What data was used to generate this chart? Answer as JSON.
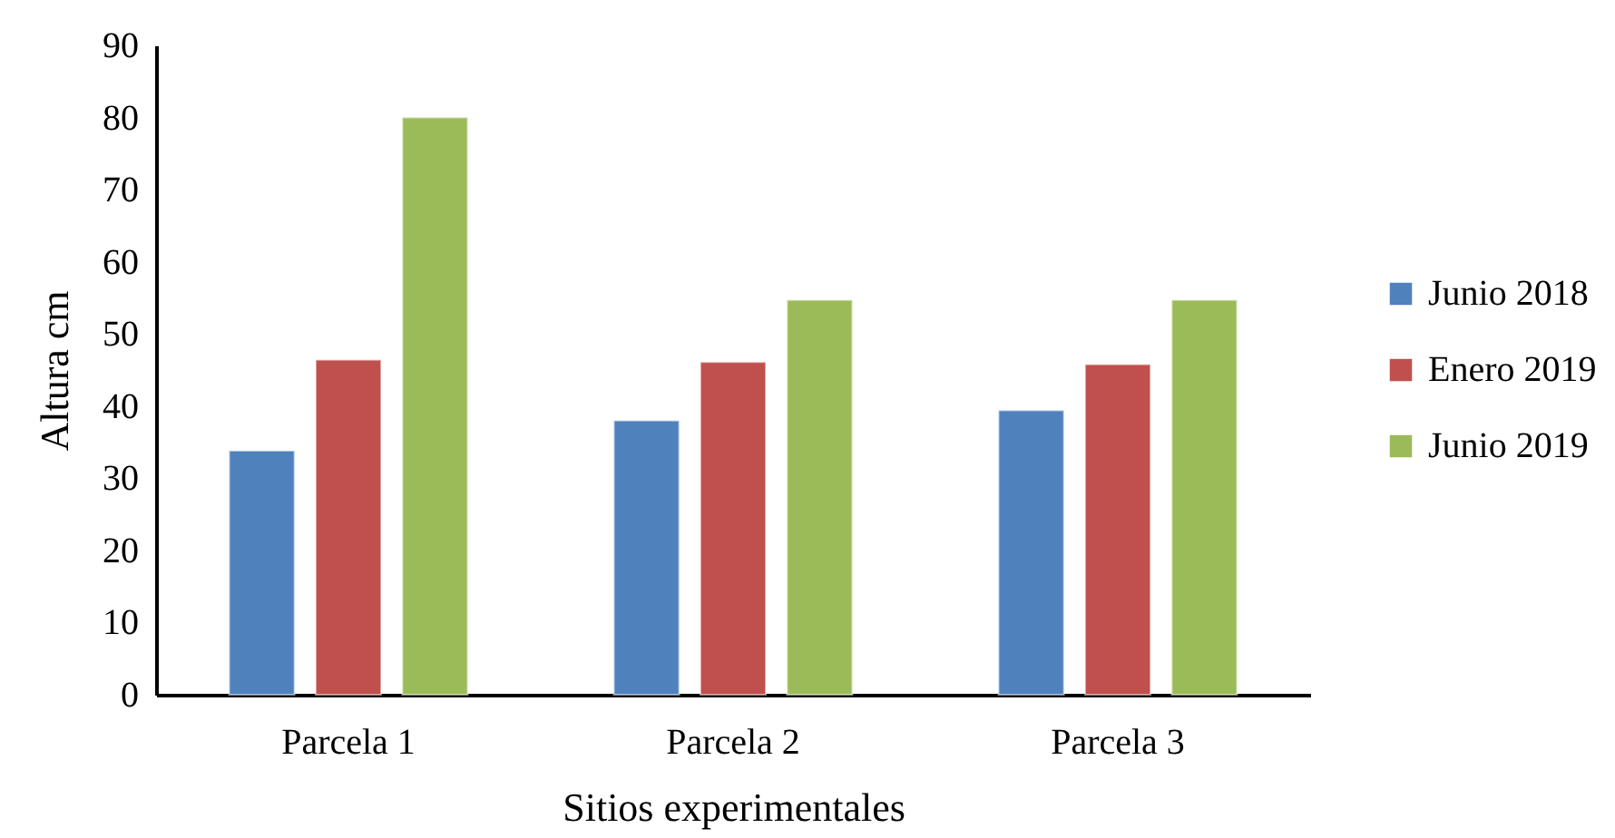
{
  "chart_data": {
    "type": "bar",
    "xlabel": "Sitios experimentales",
    "ylabel": "Altura cm",
    "categories": [
      "Parcela 1",
      "Parcela 2",
      "Parcela 3"
    ],
    "series": [
      {
        "name": "Junio 2018",
        "color": "#4f81bd",
        "values": [
          33.8,
          38.0,
          39.4
        ]
      },
      {
        "name": "Enero 2019",
        "color": "#c0504d",
        "values": [
          46.4,
          46.1,
          45.8
        ]
      },
      {
        "name": "Junio 2019",
        "color": "#9bbb59",
        "values": [
          80.0,
          54.7,
          54.7
        ]
      }
    ],
    "ylim": [
      0,
      90
    ],
    "yticks": [
      0,
      10,
      20,
      30,
      40,
      50,
      60,
      70,
      80,
      90
    ],
    "grid": false,
    "legend": "right"
  }
}
